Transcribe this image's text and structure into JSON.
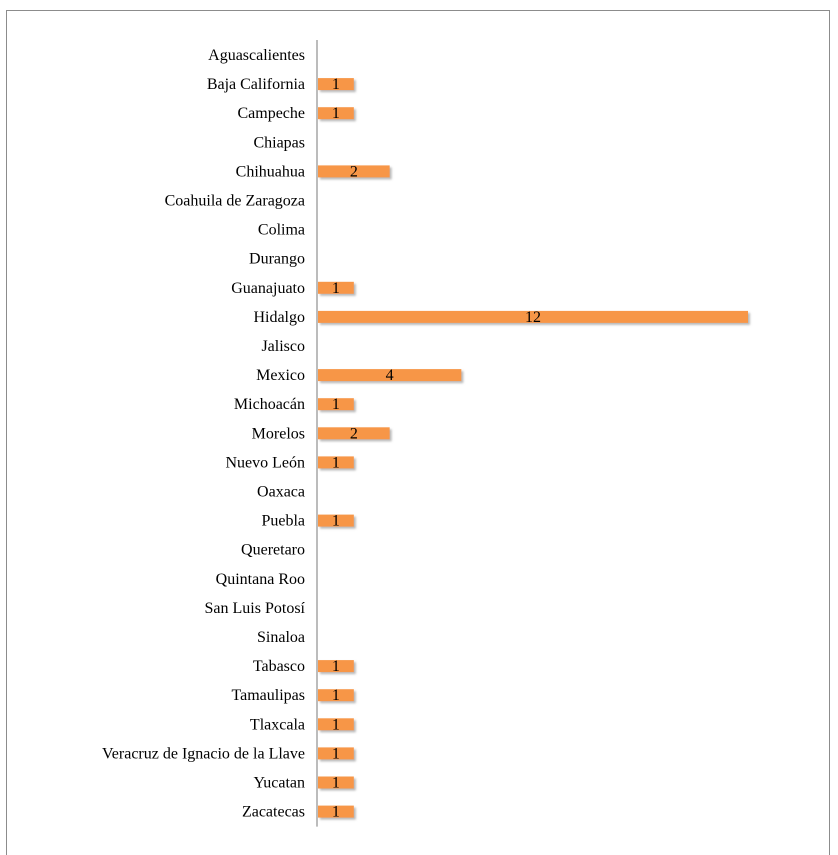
{
  "chart_data": {
    "type": "bar",
    "orientation": "horizontal",
    "categories": [
      "Aguascalientes",
      "Baja California",
      "Campeche",
      "Chiapas",
      "Chihuahua",
      "Coahuila de Zaragoza",
      "Colima",
      "Durango",
      "Guanajuato",
      "Hidalgo",
      "Jalisco",
      "Mexico",
      "Michoacán",
      "Morelos",
      "Nuevo León",
      "Oaxaca",
      "Puebla",
      "Queretaro",
      "Quintana Roo",
      "San Luis Potosí",
      "Sinaloa",
      "Tabasco",
      "Tamaulipas",
      "Tlaxcala",
      "Veracruz de Ignacio de la Llave",
      "Yucatan",
      "Zacatecas"
    ],
    "values": [
      null,
      1,
      1,
      null,
      2,
      null,
      null,
      null,
      1,
      12,
      null,
      4,
      1,
      2,
      1,
      null,
      1,
      null,
      null,
      null,
      null,
      1,
      1,
      1,
      1,
      1,
      1
    ],
    "xlim": [
      0,
      12
    ],
    "grid": false,
    "legend": "none",
    "title": "",
    "xlabel": "",
    "ylabel": "",
    "colors": {
      "bar": "#f79646",
      "bar_shadow": "#c9c9c9",
      "axis": "#a6a6a6",
      "frame": "#8c8c8c"
    }
  }
}
